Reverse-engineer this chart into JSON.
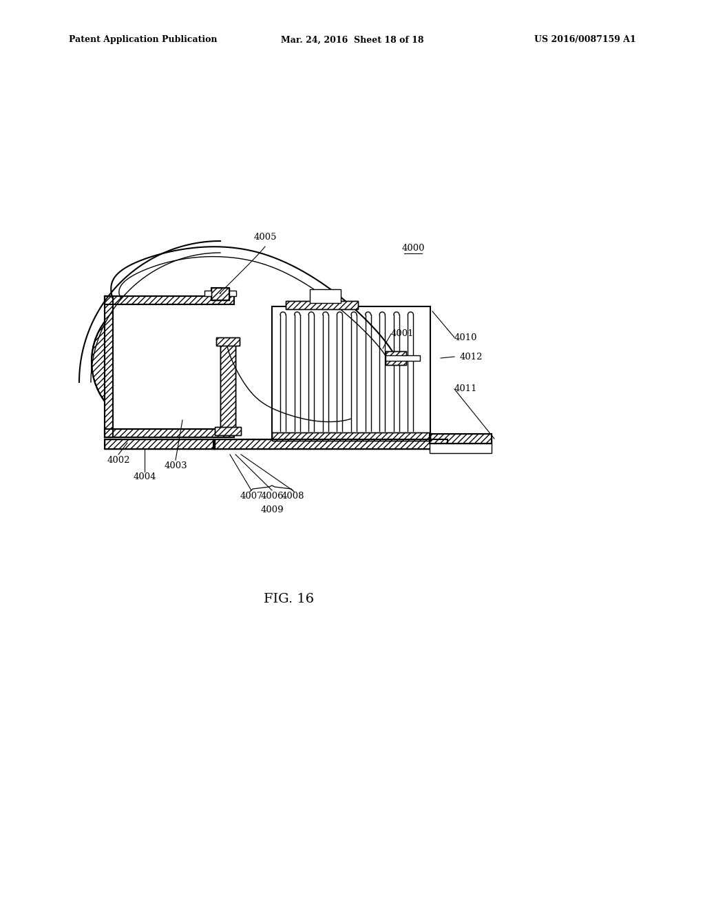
{
  "title_left": "Patent Application Publication",
  "title_mid": "Mar. 24, 2016  Sheet 18 of 18",
  "title_right": "US 2016/0087159 A1",
  "fig_label": "FIG. 16",
  "bg_color": "#ffffff"
}
